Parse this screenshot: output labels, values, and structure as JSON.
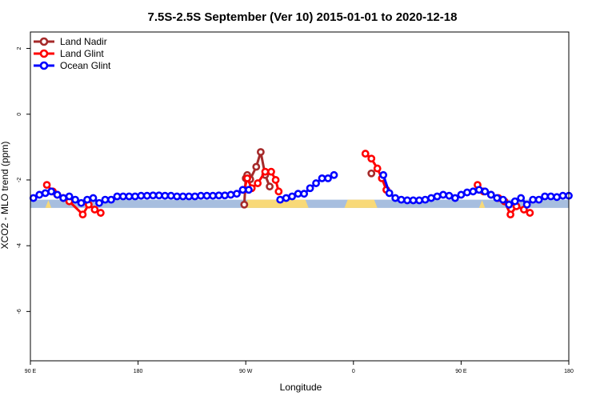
{
  "chart_data": {
    "type": "line",
    "title": "7.5S-2.5S September (Ver 10)   2015-01-01 to 2020-12-18",
    "xlabel": "Longitude",
    "ylabel": "XCO2 - MLO trend (ppm)",
    "xlim": [
      90,
      450
    ],
    "ylim": [
      -7.5,
      2.5
    ],
    "x_ticks": [
      {
        "value": 90,
        "label": "90 E"
      },
      {
        "value": 162,
        "label": "180"
      },
      {
        "value": 234,
        "label": "90 W"
      },
      {
        "value": 306,
        "label": "0"
      },
      {
        "value": 378,
        "label": "90 E"
      },
      {
        "value": 450,
        "label": "180"
      }
    ],
    "y_ticks": [
      {
        "value": 2,
        "label": "2"
      },
      {
        "value": 0,
        "label": "0"
      },
      {
        "value": -2,
        "label": "-2"
      },
      {
        "value": -4,
        "label": "-4"
      },
      {
        "value": -6,
        "label": "-6"
      }
    ],
    "band": {
      "y_top": -2.6,
      "y_bottom": -2.85,
      "ocean_color": "#a7bedf",
      "land_color": "#f8d978",
      "land_segments": [
        [
          100,
          104
        ],
        [
          233,
          276
        ],
        [
          300,
          322
        ],
        [
          390,
          394
        ]
      ]
    },
    "series": [
      {
        "name": "Land Nadir",
        "color": "#a52a2a",
        "points": [
          [
            233,
            -2.75
          ],
          [
            234,
            -1.95
          ],
          [
            235,
            -1.85
          ],
          [
            237,
            -1.98
          ],
          [
            241,
            -1.6
          ],
          [
            244,
            -1.15
          ],
          [
            247,
            -1.85
          ],
          [
            250,
            -2.2
          ],
          [
            318,
            -1.8
          ]
        ]
      },
      {
        "name": "Land Glint",
        "color": "#ff0000",
        "points": [
          [
            101,
            -2.15
          ],
          [
            105,
            -2.35
          ],
          [
            108,
            -2.45
          ],
          [
            112,
            -2.55
          ],
          [
            116,
            -2.65
          ],
          [
            125,
            -3.05
          ],
          [
            129,
            -2.75
          ],
          [
            133,
            -2.9
          ],
          [
            137,
            -3.0
          ],
          [
            233,
            -2.3
          ],
          [
            235,
            -1.95
          ],
          [
            238,
            -2.25
          ],
          [
            242,
            -2.1
          ],
          [
            247,
            -1.75
          ],
          [
            251,
            -1.75
          ],
          [
            254,
            -2.0
          ],
          [
            256,
            -2.35
          ],
          [
            314,
            -1.2
          ],
          [
            318,
            -1.35
          ],
          [
            322,
            -1.65
          ],
          [
            325,
            -1.95
          ],
          [
            328,
            -2.3
          ],
          [
            389,
            -2.15
          ],
          [
            393,
            -2.35
          ],
          [
            398,
            -2.45
          ],
          [
            403,
            -2.55
          ],
          [
            407,
            -2.65
          ],
          [
            411,
            -3.05
          ],
          [
            415,
            -2.8
          ],
          [
            420,
            -2.9
          ],
          [
            424,
            -3.0
          ]
        ]
      },
      {
        "name": "Ocean Glint",
        "color": "#0000ff",
        "points": [
          [
            92,
            -2.55
          ],
          [
            96,
            -2.45
          ],
          [
            100,
            -2.4
          ],
          [
            104,
            -2.35
          ],
          [
            108,
            -2.45
          ],
          [
            112,
            -2.55
          ],
          [
            116,
            -2.5
          ],
          [
            120,
            -2.6
          ],
          [
            124,
            -2.7
          ],
          [
            128,
            -2.6
          ],
          [
            132,
            -2.55
          ],
          [
            136,
            -2.7
          ],
          [
            140,
            -2.6
          ],
          [
            144,
            -2.6
          ],
          [
            148,
            -2.5
          ],
          [
            152,
            -2.5
          ],
          [
            156,
            -2.5
          ],
          [
            160,
            -2.5
          ],
          [
            164,
            -2.48
          ],
          [
            168,
            -2.48
          ],
          [
            172,
            -2.47
          ],
          [
            176,
            -2.47
          ],
          [
            180,
            -2.48
          ],
          [
            184,
            -2.48
          ],
          [
            188,
            -2.5
          ],
          [
            192,
            -2.5
          ],
          [
            196,
            -2.5
          ],
          [
            200,
            -2.5
          ],
          [
            204,
            -2.48
          ],
          [
            208,
            -2.48
          ],
          [
            212,
            -2.48
          ],
          [
            216,
            -2.47
          ],
          [
            220,
            -2.47
          ],
          [
            224,
            -2.45
          ],
          [
            228,
            -2.42
          ],
          [
            232,
            -2.3
          ],
          [
            236,
            -2.3
          ],
          [
            257,
            -2.6
          ],
          [
            261,
            -2.55
          ],
          [
            265,
            -2.5
          ],
          [
            269,
            -2.42
          ],
          [
            273,
            -2.42
          ],
          [
            277,
            -2.25
          ],
          [
            281,
            -2.1
          ],
          [
            285,
            -1.95
          ],
          [
            289,
            -1.95
          ],
          [
            293,
            -1.85
          ],
          [
            326,
            -1.85
          ],
          [
            330,
            -2.4
          ],
          [
            334,
            -2.55
          ],
          [
            338,
            -2.6
          ],
          [
            342,
            -2.62
          ],
          [
            346,
            -2.62
          ],
          [
            350,
            -2.62
          ],
          [
            354,
            -2.6
          ],
          [
            358,
            -2.55
          ],
          [
            362,
            -2.5
          ],
          [
            366,
            -2.45
          ],
          [
            370,
            -2.48
          ],
          [
            374,
            -2.55
          ],
          [
            378,
            -2.45
          ],
          [
            382,
            -2.38
          ],
          [
            386,
            -2.35
          ],
          [
            390,
            -2.3
          ],
          [
            394,
            -2.35
          ],
          [
            398,
            -2.45
          ],
          [
            402,
            -2.55
          ],
          [
            406,
            -2.6
          ],
          [
            410,
            -2.75
          ],
          [
            414,
            -2.65
          ],
          [
            418,
            -2.55
          ],
          [
            422,
            -2.75
          ],
          [
            426,
            -2.6
          ],
          [
            430,
            -2.6
          ],
          [
            434,
            -2.5
          ],
          [
            438,
            -2.5
          ],
          [
            442,
            -2.52
          ],
          [
            446,
            -2.48
          ],
          [
            450,
            -2.48
          ]
        ]
      }
    ],
    "legend": {
      "position": "top-left"
    }
  }
}
